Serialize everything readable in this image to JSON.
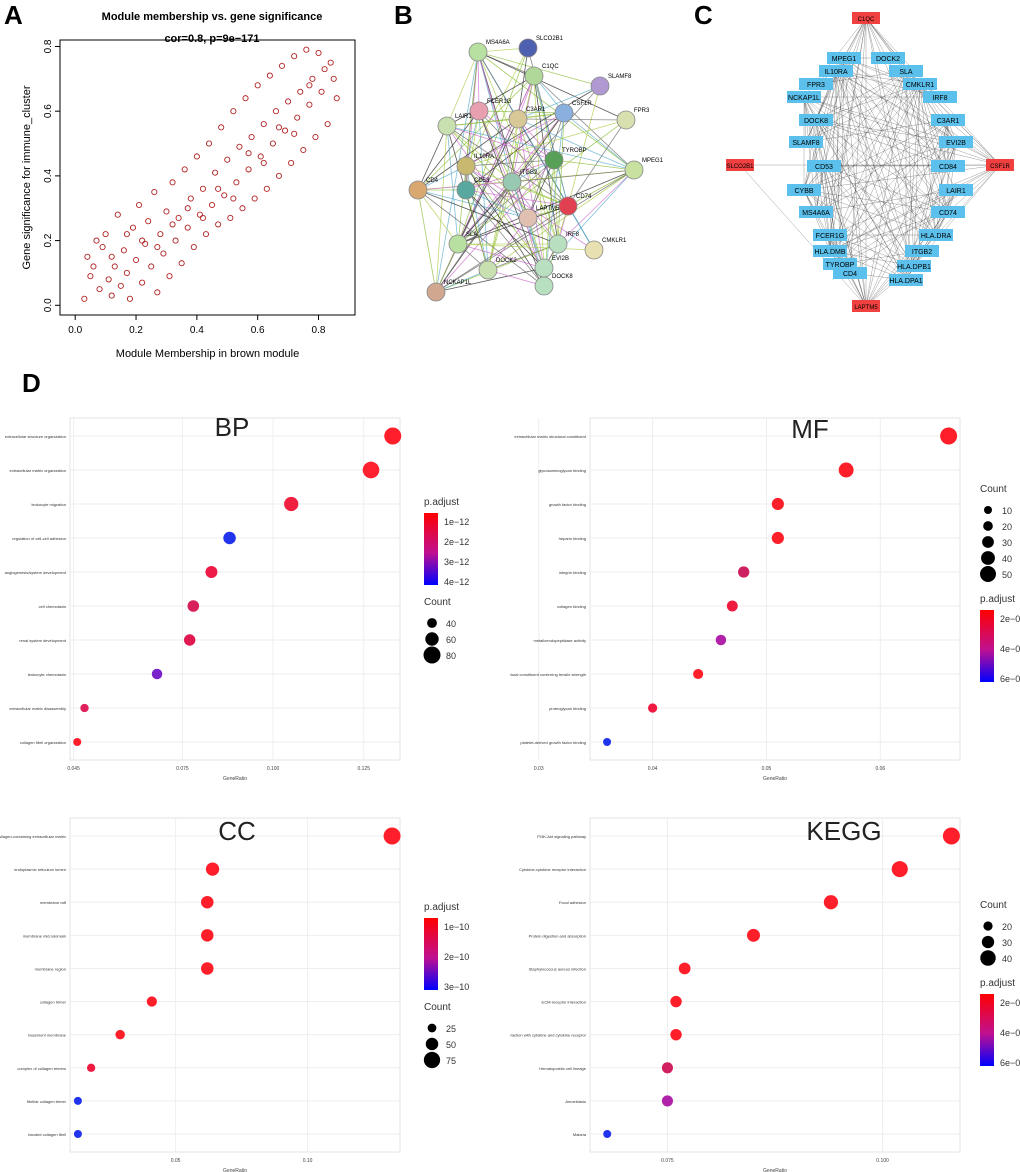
{
  "panel_letters": [
    "A",
    "B",
    "C",
    "D"
  ],
  "chart_data": [
    {
      "id": "A",
      "type": "scatter",
      "title": "Module membership vs. gene significance",
      "subtitle": "cor=0.8, p=9e−171",
      "xlabel": "Module Membership in brown module",
      "ylabel": "Gene significance for immune_cluster",
      "xlim": [
        -0.05,
        0.92
      ],
      "ylim": [
        -0.03,
        0.82
      ],
      "xticks": [
        "0.0",
        "0.2",
        "0.4",
        "0.6",
        "0.8"
      ],
      "yticks": [
        "0.0",
        "0.2",
        "0.4",
        "0.6",
        "0.8"
      ],
      "point_color": "#b22222",
      "points": [
        [
          0.04,
          0.15
        ],
        [
          0.06,
          0.12
        ],
        [
          0.08,
          0.05
        ],
        [
          0.09,
          0.18
        ],
        [
          0.1,
          0.22
        ],
        [
          0.11,
          0.08
        ],
        [
          0.12,
          0.03
        ],
        [
          0.13,
          0.12
        ],
        [
          0.14,
          0.28
        ],
        [
          0.15,
          0.06
        ],
        [
          0.16,
          0.17
        ],
        [
          0.17,
          0.1
        ],
        [
          0.18,
          0.02
        ],
        [
          0.19,
          0.24
        ],
        [
          0.2,
          0.14
        ],
        [
          0.21,
          0.31
        ],
        [
          0.22,
          0.07
        ],
        [
          0.23,
          0.19
        ],
        [
          0.24,
          0.26
        ],
        [
          0.25,
          0.12
        ],
        [
          0.26,
          0.35
        ],
        [
          0.27,
          0.04
        ],
        [
          0.28,
          0.22
        ],
        [
          0.29,
          0.16
        ],
        [
          0.3,
          0.29
        ],
        [
          0.31,
          0.09
        ],
        [
          0.32,
          0.38
        ],
        [
          0.33,
          0.2
        ],
        [
          0.34,
          0.27
        ],
        [
          0.35,
          0.13
        ],
        [
          0.36,
          0.42
        ],
        [
          0.37,
          0.24
        ],
        [
          0.38,
          0.33
        ],
        [
          0.39,
          0.18
        ],
        [
          0.4,
          0.46
        ],
        [
          0.41,
          0.28
        ],
        [
          0.42,
          0.36
        ],
        [
          0.43,
          0.22
        ],
        [
          0.44,
          0.5
        ],
        [
          0.45,
          0.31
        ],
        [
          0.46,
          0.41
        ],
        [
          0.47,
          0.25
        ],
        [
          0.48,
          0.55
        ],
        [
          0.49,
          0.34
        ],
        [
          0.5,
          0.45
        ],
        [
          0.51,
          0.27
        ],
        [
          0.52,
          0.6
        ],
        [
          0.53,
          0.38
        ],
        [
          0.54,
          0.49
        ],
        [
          0.55,
          0.3
        ],
        [
          0.56,
          0.64
        ],
        [
          0.57,
          0.42
        ],
        [
          0.58,
          0.52
        ],
        [
          0.59,
          0.33
        ],
        [
          0.6,
          0.68
        ],
        [
          0.61,
          0.46
        ],
        [
          0.62,
          0.56
        ],
        [
          0.63,
          0.36
        ],
        [
          0.64,
          0.71
        ],
        [
          0.65,
          0.5
        ],
        [
          0.66,
          0.6
        ],
        [
          0.67,
          0.4
        ],
        [
          0.68,
          0.74
        ],
        [
          0.69,
          0.54
        ],
        [
          0.7,
          0.63
        ],
        [
          0.71,
          0.44
        ],
        [
          0.72,
          0.77
        ],
        [
          0.73,
          0.58
        ],
        [
          0.74,
          0.66
        ],
        [
          0.75,
          0.48
        ],
        [
          0.76,
          0.79
        ],
        [
          0.77,
          0.62
        ],
        [
          0.78,
          0.7
        ],
        [
          0.79,
          0.52
        ],
        [
          0.8,
          0.78
        ],
        [
          0.81,
          0.66
        ],
        [
          0.82,
          0.73
        ],
        [
          0.83,
          0.56
        ],
        [
          0.84,
          0.75
        ],
        [
          0.85,
          0.7
        ],
        [
          0.86,
          0.64
        ],
        [
          0.03,
          0.02
        ],
        [
          0.05,
          0.09
        ],
        [
          0.07,
          0.2
        ],
        [
          0.12,
          0.15
        ],
        [
          0.17,
          0.22
        ],
        [
          0.22,
          0.2
        ],
        [
          0.27,
          0.18
        ],
        [
          0.32,
          0.25
        ],
        [
          0.37,
          0.3
        ],
        [
          0.42,
          0.27
        ],
        [
          0.47,
          0.36
        ],
        [
          0.52,
          0.33
        ],
        [
          0.57,
          0.47
        ],
        [
          0.62,
          0.44
        ],
        [
          0.67,
          0.55
        ],
        [
          0.72,
          0.53
        ],
        [
          0.77,
          0.68
        ]
      ]
    },
    {
      "id": "BP",
      "type": "scatter",
      "title": "BP",
      "xlabel": "GeneRatio",
      "xticks": [
        "0.045",
        "0.075",
        "0.100",
        "0.125"
      ],
      "terms": [
        "extracellular structure organization",
        "extracellular matrix organization",
        "leukocyte migration",
        "regulation of cell-cell adhesion",
        "angiogenesis/system development",
        "cell chemotaxis",
        "renal system development",
        "leukocyte chemotaxis",
        "extracellular matrix disassembly",
        "collagen fibril organization"
      ],
      "x": [
        0.133,
        0.127,
        0.105,
        0.088,
        0.083,
        0.078,
        0.077,
        0.068,
        0.048,
        0.046
      ],
      "count": [
        80,
        78,
        65,
        55,
        52,
        50,
        49,
        44,
        32,
        30
      ],
      "padj_color": [
        "#ff1f2a",
        "#ff2030",
        "#f02040",
        "#2233ee",
        "#ee1a48",
        "#d8205a",
        "#e01a50",
        "#7a22cc",
        "#e0205a",
        "#ff1f2a"
      ],
      "xlim": [
        0.044,
        0.135
      ],
      "legend_title_color": "p.adjust",
      "legend_color_ticks": [
        "1e−12",
        "2e−12",
        "3e−12",
        "4e−12"
      ],
      "legend_title_size": "Count",
      "legend_size_values": [
        "40",
        "60",
        "80"
      ]
    },
    {
      "id": "MF",
      "type": "scatter",
      "title": "MF",
      "xlabel": "GeneRatio",
      "xticks": [
        "0.03",
        "0.04",
        "0.05",
        "0.06"
      ],
      "terms": [
        "extracellular matrix structural constituent",
        "glycosaminoglycan binding",
        "growth factor binding",
        "heparin binding",
        "integrin binding",
        "collagen binding",
        "metalloendopeptidase activity",
        "extracellular matrix structural constituent conferring tensile strength",
        "proteoglycan binding",
        "platelet-derived growth factor binding"
      ],
      "x": [
        0.066,
        0.057,
        0.051,
        0.051,
        0.048,
        0.047,
        0.046,
        0.044,
        0.04,
        0.036
      ],
      "count": [
        55,
        45,
        32,
        32,
        28,
        26,
        24,
        22,
        18,
        12
      ],
      "padj_color": [
        "#ff1f2a",
        "#ff1f2a",
        "#ff1f2a",
        "#ff1f2a",
        "#cc2060",
        "#ee1a40",
        "#b022aa",
        "#ff1f2a",
        "#ee1a40",
        "#2233ee"
      ],
      "xlim": [
        0.0345,
        0.067
      ],
      "legend_title_size": "Count",
      "legend_size_values": [
        "10",
        "20",
        "30",
        "40",
        "50"
      ],
      "legend_title_color": "p.adjust",
      "legend_color_ticks": [
        "2e−08",
        "4e−08",
        "6e−08"
      ]
    },
    {
      "id": "CC",
      "type": "scatter",
      "title": "CC",
      "xlabel": "GeneRatio",
      "xticks": [
        "0.05",
        "0.10"
      ],
      "terms": [
        "collagen-containing extracellular matrix",
        "endoplasmic reticulum lumen",
        "membrane raft",
        "membrane microdomain",
        "membrane region",
        "collagen trimer",
        "basement membrane",
        "complex of collagen trimers",
        "fibrillar collagen trimer",
        "banded collagen fibril"
      ],
      "x": [
        0.132,
        0.064,
        0.062,
        0.062,
        0.062,
        0.041,
        0.029,
        0.018,
        0.013,
        0.013
      ],
      "count": [
        80,
        55,
        50,
        50,
        50,
        35,
        30,
        22,
        20,
        20
      ],
      "padj_color": [
        "#ff1f2a",
        "#ff1f2a",
        "#ff1f2a",
        "#ff1f2a",
        "#ff1f2a",
        "#ff1f2a",
        "#ff1f2a",
        "#ee1a40",
        "#2233ee",
        "#2233ee"
      ],
      "xlim": [
        0.01,
        0.135
      ],
      "legend_title_color": "p.adjust",
      "legend_color_ticks": [
        "1e−10",
        "2e−10",
        "3e−10"
      ],
      "legend_title_size": "Count",
      "legend_size_values": [
        "25",
        "50",
        "75"
      ]
    },
    {
      "id": "KEGG",
      "type": "scatter",
      "title": "KEGG",
      "xlabel": "GeneRatio",
      "xticks": [
        "0.050",
        "0.075",
        "0.100"
      ],
      "terms": [
        "PI3K-Akt signaling pathway",
        "Cytokine-cytokine receptor interaction",
        "Focal adhesion",
        "Protein digestion and absorption",
        "Staphylococcus aureus infection",
        "ECM-receptor interaction",
        "Viral protein interaction with cytokine and cytokine receptor",
        "Hematopoietic cell lineage",
        "Amoebiasis",
        "Malaria"
      ],
      "x": [
        0.108,
        0.102,
        0.094,
        0.085,
        0.077,
        0.076,
        0.076,
        0.075,
        0.075,
        0.068
      ],
      "count": [
        45,
        42,
        36,
        32,
        28,
        27,
        27,
        26,
        26,
        16
      ],
      "padj_color": [
        "#ff1f2a",
        "#ff1f2a",
        "#ff1f2a",
        "#ff1f2a",
        "#ff1f2a",
        "#ff1f2a",
        "#ff1f2a",
        "#d02060",
        "#b022aa",
        "#2233ee"
      ],
      "xlim": [
        0.066,
        0.109
      ],
      "legend_title_size": "Count",
      "legend_size_values": [
        "20",
        "30",
        "40"
      ],
      "legend_title_color": "p.adjust",
      "legend_color_ticks": [
        "2e−06",
        "4e−06",
        "6e−06"
      ]
    }
  ],
  "network_b": {
    "nodes": [
      {
        "label": "MS4A6A",
        "color": "#b8e0a0"
      },
      {
        "label": "SLCO2B1",
        "color": "#5060b0"
      },
      {
        "label": "C1QC",
        "color": "#b0d898"
      },
      {
        "label": "SLAMF8",
        "color": "#b098d0"
      },
      {
        "label": "FCER1G",
        "color": "#e8a0b0"
      },
      {
        "label": "C3AR1",
        "color": "#d8c898"
      },
      {
        "label": "CSF1R",
        "color": "#8ab0e0"
      },
      {
        "label": "FPR3",
        "color": "#d8e0b0"
      },
      {
        "label": "LAIR1",
        "color": "#c8e0b0"
      },
      {
        "label": "TYROBP",
        "color": "#58a058"
      },
      {
        "label": "IL10RA",
        "color": "#c8b870"
      },
      {
        "label": "MPEG1",
        "color": "#c8e0a0"
      },
      {
        "label": "CD4",
        "color": "#d8a870"
      },
      {
        "label": "CD53",
        "color": "#58a8a0"
      },
      {
        "label": "ITGB2",
        "color": "#98c8b0"
      },
      {
        "label": "CD74",
        "color": "#e04050"
      },
      {
        "label": "LAPTM5",
        "color": "#e0c0b0"
      },
      {
        "label": "IRF8",
        "color": "#b8e0c0"
      },
      {
        "label": "EVI2B",
        "color": "#b8e0c0"
      },
      {
        "label": "CMKLR1",
        "color": "#e8e0b0"
      },
      {
        "label": "SLA",
        "color": "#b8e0a0"
      },
      {
        "label": "DOCK2",
        "color": "#c8e0b0"
      },
      {
        "label": "DOCK8",
        "color": "#b8e0c0"
      },
      {
        "label": "NCKAP1L",
        "color": "#d0a890"
      }
    ]
  },
  "network_c": {
    "node_color": "#5bc0eb",
    "hub_color": "#f04040",
    "labels_top": "C1QC",
    "labels_left": "SLCO2B1",
    "labels_right": "CSF1R",
    "labels_bottom": "LAPTM5",
    "labels_ring": [
      "MPEG1",
      "DOCK2",
      "IL10RA",
      "SLA",
      "FPR3",
      "CMKLR1",
      "NCKAP1L",
      "IRF8",
      "DOCK8",
      "C3AR1",
      "SLAMF8",
      "EVI2B",
      "CD53",
      "CD84",
      "CYBB",
      "LAIR1",
      "MS4A6A",
      "CD74",
      "FCER1G",
      "HLA.DRA",
      "HLA.DMB",
      "ITGB2",
      "TYROBP",
      "HLA.DPB1",
      "CD4",
      "HLA.DPA1"
    ]
  }
}
